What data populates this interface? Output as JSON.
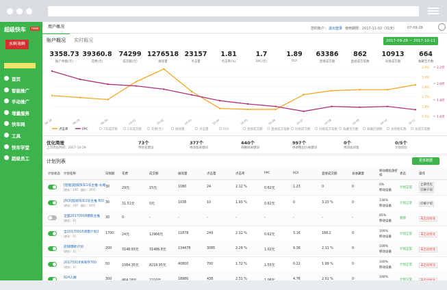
{
  "sidebar": {
    "logo": "超级快车",
    "badge": "new",
    "shop": "水鲜海鲜",
    "menu": [
      "首页",
      "智能推广",
      "手动推广",
      "增量服务",
      "快车网",
      "工具",
      "快车学堂",
      "超级员工"
    ]
  },
  "header": {
    "tab": "用户概况",
    "account": "您的账户：",
    "logout": "退出登录",
    "expire": "使用期限：2017-11-02（31天）",
    "date": "07-09-28"
  },
  "tabs": [
    "账户概况",
    "实时概况"
  ],
  "date_range": "2017-09-28 ~ 2017-10-11",
  "stats": [
    {
      "value": "3358.73",
      "label": "账户余额(元)"
    },
    {
      "value": "39360.8",
      "label": "花费(元)"
    },
    {
      "value": "74299",
      "label": "成交额(元)"
    },
    {
      "value": "1276518",
      "label": "展现量"
    },
    {
      "value": "23157",
      "label": "点击量"
    },
    {
      "value": "1.81",
      "label": "点击率(%)"
    },
    {
      "value": "1.7",
      "label": "PPC(元)"
    },
    {
      "value": "1.89",
      "label": "ROI"
    },
    {
      "value": "63386",
      "label": "直接成交额"
    },
    {
      "value": "862",
      "label": "直接成交笔数"
    },
    {
      "value": "10913",
      "label": "间接成交额"
    },
    {
      "value": "664",
      "label": "收藏宝贝数"
    }
  ],
  "chart_data": {
    "type": "line",
    "x": [
      "09-28",
      "09-29",
      "09-30",
      "10-01",
      "10-02",
      "10-03",
      "10-04",
      "10-05",
      "10-06",
      "10-07",
      "10-08",
      "10-09",
      "10-10",
      "10-11"
    ],
    "series": [
      {
        "name": "点击率",
        "color": "#f5a623",
        "values": [
          1.71,
          1.69,
          1.67,
          1.85,
          1.98,
          1.75,
          1.58,
          1.57,
          1.57,
          1.72,
          1.76,
          1.77,
          1.77,
          1.82
        ]
      },
      {
        "name": "PPC",
        "color": "#b0307a",
        "axis": "y2",
        "values": [
          2.15,
          2.05,
          1.99,
          1.97,
          1.93,
          1.86,
          1.79,
          1.75,
          1.72,
          1.66,
          1.72,
          1.71,
          1.72,
          1.68
        ]
      }
    ],
    "ylim": [
      1.5,
      2.0
    ],
    "yticks": [
      {
        "value": 1.5,
        "label": "1.5%"
      },
      {
        "value": 1.6,
        "label": "1.6%"
      },
      {
        "value": 1.7,
        "label": "1.7%"
      },
      {
        "value": 1.8,
        "label": "1.8%"
      },
      {
        "value": 1.9,
        "label": "1.9%"
      },
      {
        "value": 2.0,
        "label": "2.0%"
      }
    ],
    "y2lim": [
      1.6,
      2.2
    ],
    "y2ticks": [
      {
        "value": 1.6,
        "label": "1.6元"
      },
      {
        "value": 1.8,
        "label": "1.8元"
      },
      {
        "value": 2.0,
        "label": "2.0元"
      },
      {
        "value": 2.2,
        "label": "2.2元"
      }
    ],
    "grid": true,
    "other_metrics": [
      "7天成交额",
      "1天成交额",
      "花费(元)",
      "展现量",
      "点击量",
      "ROI",
      "直接成交额",
      "直接成交笔数",
      "间接成交额",
      "间接成交笔数",
      "收藏宝贝数",
      "收藏店铺数",
      "总购物车数",
      "总成交笔数"
    ]
  },
  "brief": {
    "title": "优化简报",
    "time": "上次优化时间：2017-10-29",
    "items": [
      {
        "value": "73个",
        "label": "待优化建议"
      },
      {
        "value": "377个",
        "label": "待添加关键词"
      },
      {
        "value": "440个",
        "label": "待删除关键词"
      },
      {
        "value": "997个",
        "label": "待调整出价关键词"
      },
      {
        "value": "0个",
        "label": "待添加创意"
      },
      {
        "value": "0/5个",
        "label": "计划优化"
      }
    ]
  },
  "plans": {
    "title": "计划列表",
    "button": "更多数据",
    "columns": [
      "计划状态",
      "计划名称",
      "日限额",
      "花费",
      "成交额",
      "展现量",
      "点击量",
      "点击率",
      "PPC",
      "ROI",
      "直接成交额",
      "总收藏量",
      "移动端投放折扣",
      "状态",
      "操作"
    ],
    "rows": [
      {
        "enabled": true,
        "name": "[智能]超级快车1号主推-长尾",
        "sub": "[底价：197 · 超价：197]",
        "cells": [
          "30",
          "29元",
          "15元",
          "1080",
          "24",
          "2.12 %",
          "0.62元",
          "1.23",
          "0",
          "0"
        ],
        "mobile": [
          "0%",
          "移动设备"
        ],
        "status": "计划正常",
        "actions": [
          "立即优化",
          "切换计划"
        ]
      },
      {
        "enabled": true,
        "name": "[ROI]超级快车2号主推 ROI",
        "sub": "[底价：197 · 超价：197]",
        "cells": [
          "30",
          "31.51元",
          "0元",
          "1038",
          "10",
          "1.93 %",
          "0.62元",
          "0",
          "3.23 %",
          "0"
        ],
        "mobile": [
          "136%",
          "移动设备"
        ],
        "status": "计划正常",
        "actions": [
          "切换计划"
        ]
      },
      {
        "enabled": false,
        "name": "全国20170918爆款主推",
        "sub": "[底价：0]",
        "cells": [
          "30",
          "0",
          "-",
          "-",
          "-",
          "-",
          "-",
          "-",
          "-",
          "-"
        ],
        "mobile": [
          "85%",
          "移动设备"
        ],
        "status": "暂停",
        "actions": [
          "未启动优化"
        ]
      },
      {
        "enabled": true,
        "name": "全20170918调量计划2",
        "sub": "[底价：0]",
        "cells": [
          "1700",
          "24元",
          "12966元",
          "11878",
          "249",
          "2.12 %",
          "0.62元",
          "3.16",
          "188.2",
          "0"
        ],
        "mobile": [
          "100%",
          "移动设备"
        ],
        "status": "计划正常",
        "actions": [
          "未启动优化"
        ]
      },
      {
        "enabled": true,
        "name": "店铺爆款计划",
        "sub": "[底价：0]",
        "cells": [
          "200",
          "3148.93元",
          "31486.8元",
          "134478",
          "3085",
          "2.29 %",
          "1.02元",
          "9.36",
          "2.11 %",
          "0"
        ],
        "mobile": [
          "100%",
          "移动设备"
        ],
        "status": "计划正常",
        "actions": [
          "未启动优化"
        ]
      },
      {
        "enabled": true,
        "name": "20170918清库存760",
        "sub": "[底价：0]",
        "cells": [
          "50",
          "1084.35元",
          "8218.95元",
          "40800",
          "700",
          "1.72 %",
          "1.55元",
          "0.22",
          "1.99 %",
          "0"
        ],
        "mobile": [
          "100%",
          "移动设备"
        ],
        "status": "计划正常",
        "actions": [
          "未启动优化"
        ]
      },
      {
        "enabled": true,
        "name": "824人群",
        "sub": "[底价：0]",
        "cells": [
          "300",
          "464.28元",
          "2210元",
          "18980",
          "438",
          "2.31 %",
          "1.06元",
          "4.76",
          "2.01 %",
          "0"
        ],
        "mobile": [
          "100%",
          "移动设备"
        ],
        "status": "计划正常",
        "actions": [
          "未启动优化"
        ]
      }
    ]
  }
}
